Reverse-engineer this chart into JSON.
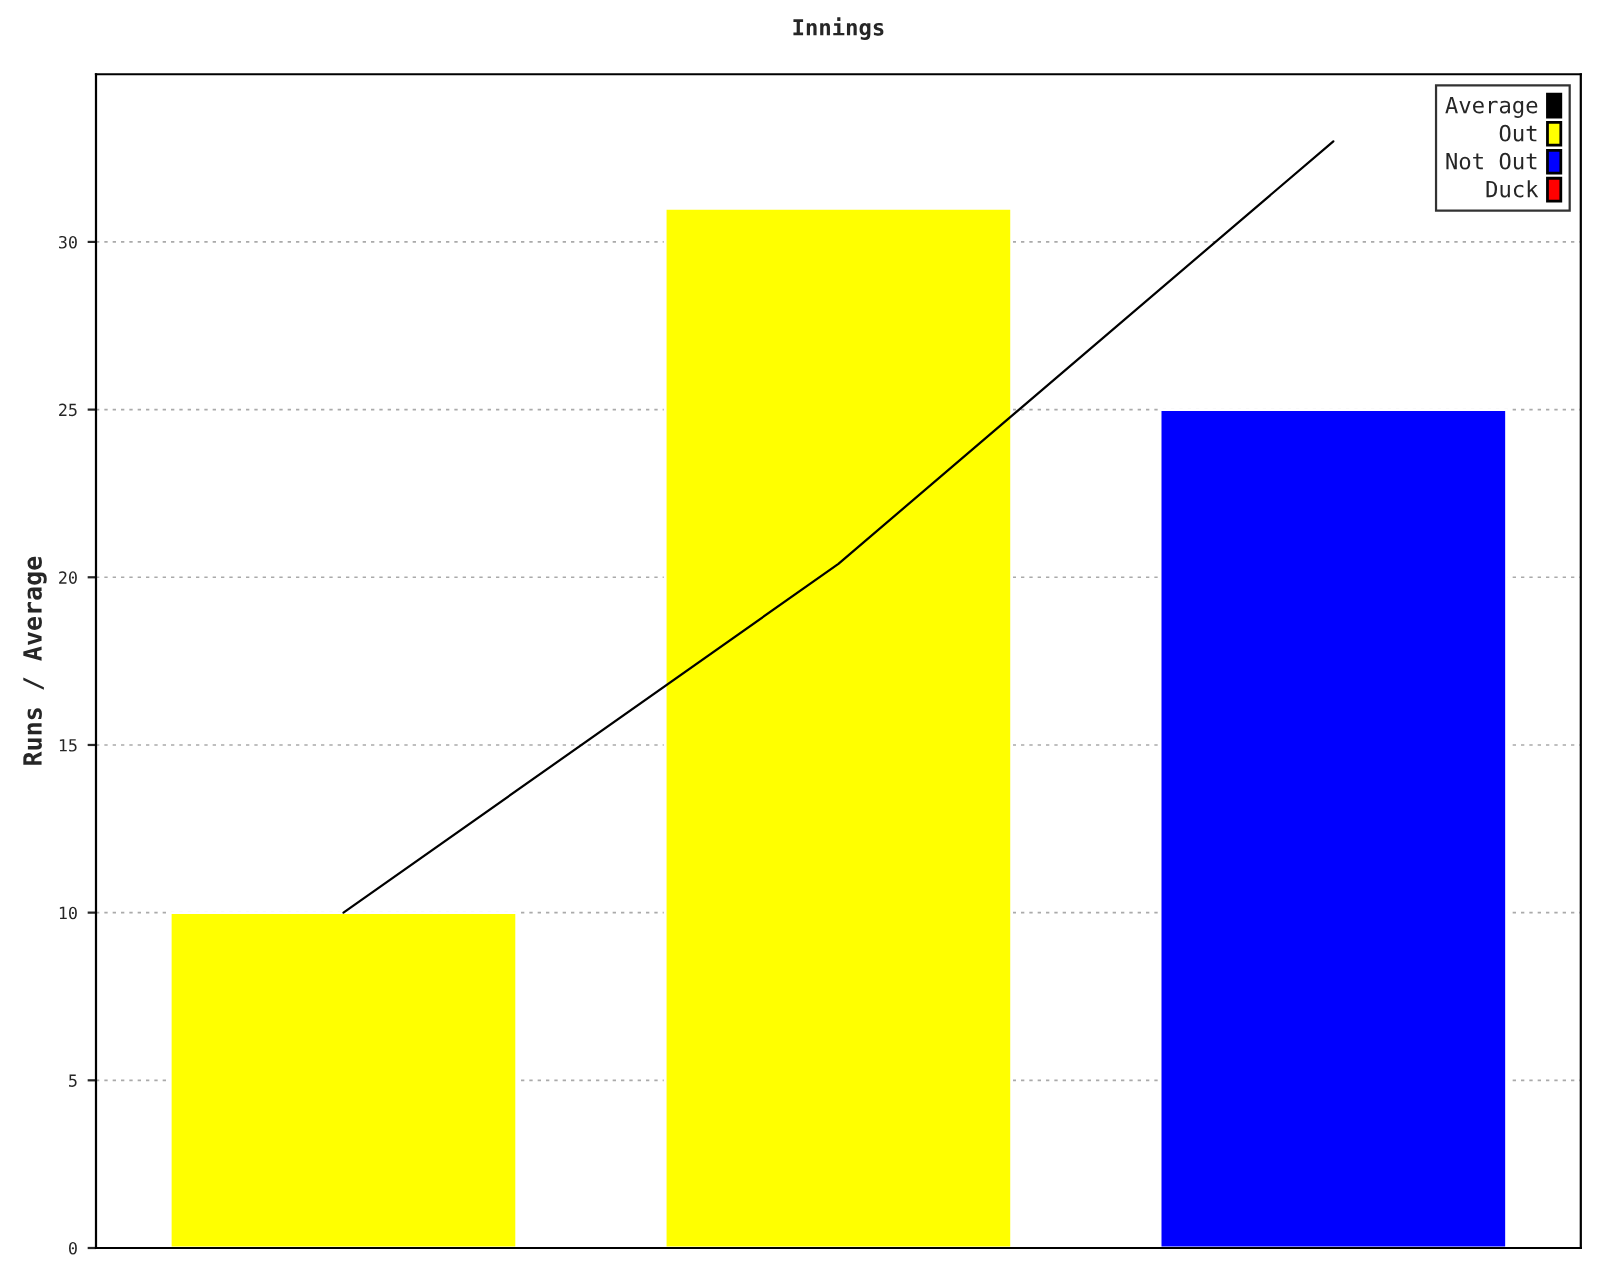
{
  "chart_data": {
    "type": "bar",
    "title": "Innings",
    "ylabel": "Runs / Average",
    "categories": [
      null,
      null,
      null
    ],
    "series": [
      {
        "name": "Average",
        "type": "line",
        "color": "#000000",
        "values": [
          10,
          20.4,
          33
        ]
      },
      {
        "name": "Out",
        "color": "#ffff00",
        "values": [
          10,
          31,
          null
        ]
      },
      {
        "name": "Not Out",
        "color": "#0000ff",
        "values": [
          null,
          null,
          25
        ]
      },
      {
        "name": "Duck",
        "color": "#ff0000",
        "values": [
          null,
          null,
          null
        ]
      }
    ],
    "ylim": [
      0,
      35
    ],
    "yticks": [
      0,
      5,
      10,
      15,
      20,
      25,
      30
    ],
    "grid": "y",
    "legend": "top right",
    "tick_labels": "y"
  }
}
